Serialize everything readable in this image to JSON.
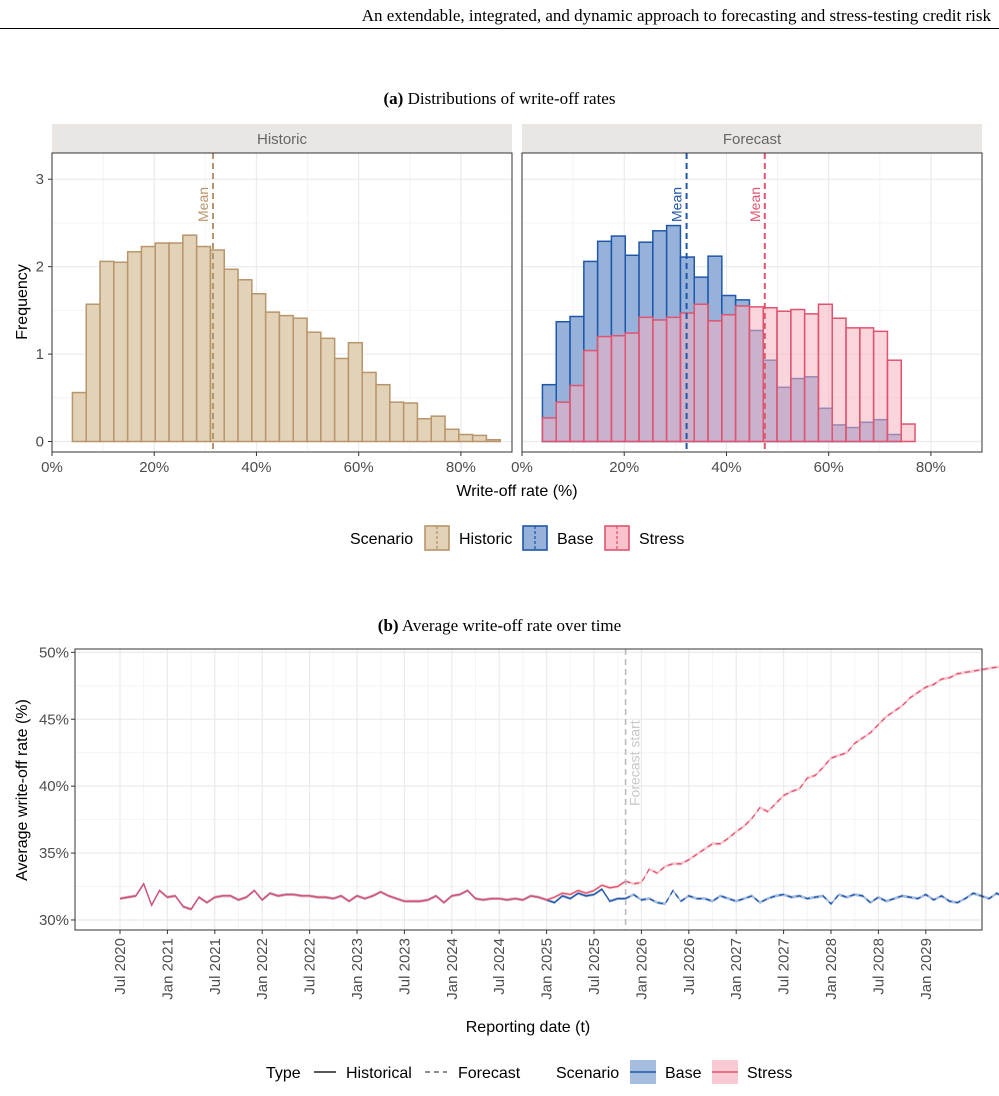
{
  "header": {
    "running_title": "An extendable, integrated, and dynamic approach to forecasting and stress-testing credit risk"
  },
  "panel_a": {
    "label": "(a)",
    "caption": "Distributions of write-off rates"
  },
  "panel_b": {
    "label": "(b)",
    "caption": "Average write-off rate over time"
  },
  "colors": {
    "historic_fill": "#E2D3B8",
    "historic_line": "#B8956A",
    "base_fill": "#96B2DB",
    "base_line": "#1F57A8",
    "stress_fill": "#F8B3BF",
    "stress_line": "#E0546F",
    "overlap_fill": "#A48CB5",
    "grid": "#EBEBEB",
    "strip": "#EAE6E4",
    "forecast_line": "#BBBBBB"
  },
  "chart_data": [
    {
      "type": "bar",
      "subtype": "histogram",
      "title": "Distributions of write-off rates",
      "xlabel": "Write-off rate (%)",
      "ylabel": "Frequency",
      "xlim": [
        0,
        0.9
      ],
      "ylim": [
        -0.12,
        3.3
      ],
      "x_ticks": [
        "0%",
        "20%",
        "40%",
        "60%",
        "80%"
      ],
      "x_tick_values": [
        0,
        0.2,
        0.4,
        0.6,
        0.8
      ],
      "y_ticks": [
        "0",
        "1",
        "2",
        "3"
      ],
      "y_tick_values": [
        0,
        1,
        2,
        3
      ],
      "grid": true,
      "bin_edges_start": 0.04,
      "bin_width": 0.027,
      "facets": [
        {
          "name": "Historic",
          "series": [
            {
              "name": "Historic",
              "values": [
                0.56,
                1.57,
                2.06,
                2.05,
                2.17,
                2.23,
                2.27,
                2.27,
                2.36,
                2.23,
                2.19,
                1.97,
                1.85,
                1.69,
                1.48,
                1.44,
                1.41,
                1.25,
                1.18,
                0.95,
                1.13,
                0.79,
                0.65,
                0.45,
                0.44,
                0.26,
                0.29,
                0.14,
                0.08,
                0.07,
                0.02
              ]
            }
          ],
          "means": [
            {
              "scenario": "Historic",
              "value": 0.315,
              "label": "Mean"
            }
          ]
        },
        {
          "name": "Forecast",
          "series": [
            {
              "name": "Base",
              "values": [
                0.65,
                1.37,
                1.43,
                2.06,
                2.29,
                2.35,
                2.13,
                2.28,
                2.41,
                2.47,
                2.11,
                1.88,
                2.12,
                1.67,
                1.62,
                1.27,
                0.93,
                0.62,
                0.72,
                0.74,
                0.38,
                0.19,
                0.16,
                0.22,
                0.25,
                0.08,
                0
              ]
            },
            {
              "name": "Stress",
              "values": [
                0.27,
                0.45,
                0.64,
                1.04,
                1.2,
                1.21,
                1.24,
                1.42,
                1.39,
                1.42,
                1.47,
                1.57,
                1.38,
                1.45,
                1.55,
                1.54,
                1.53,
                1.49,
                1.51,
                1.46,
                1.57,
                1.41,
                1.3,
                1.3,
                1.26,
                0.93,
                0.2
              ]
            }
          ],
          "means": [
            {
              "scenario": "Base",
              "value": 0.322,
              "label": "Mean"
            },
            {
              "scenario": "Stress",
              "value": 0.475,
              "label": "Mean"
            }
          ]
        }
      ],
      "legend": {
        "title": "Scenario",
        "position": "bottom",
        "items": [
          "Historic",
          "Base",
          "Stress"
        ]
      }
    },
    {
      "type": "line",
      "title": "Average write-off rate over time",
      "xlabel": "Reporting date (t)",
      "ylabel": "Average write-off rate (%)",
      "x_ticks": [
        "Jul 2020",
        "Jan 2021",
        "Jul 2021",
        "Jan 2022",
        "Jul 2022",
        "Jan 2023",
        "Jul 2023",
        "Jan 2024",
        "Jul 2024",
        "Jan 2025",
        "Jul 2025",
        "Jan 2026",
        "Jul 2026",
        "Jan 2027",
        "Jul 2027",
        "Jan 2028",
        "Jul 2028",
        "Jan 2029"
      ],
      "y_ticks": [
        "30%",
        "35%",
        "40%",
        "45%",
        "50%"
      ],
      "y_tick_values": [
        0.3,
        0.35,
        0.4,
        0.45,
        0.5
      ],
      "ylim": [
        0.2925,
        0.5025
      ],
      "grid": true,
      "x_start": "Jul 2020",
      "forecast_start": "Nov 2025",
      "forecast_label": "Forecast start",
      "series": [
        {
          "name": "Base",
          "values": [
            0.316,
            0.317,
            0.318,
            0.327,
            0.311,
            0.322,
            0.317,
            0.318,
            0.31,
            0.308,
            0.317,
            0.313,
            0.317,
            0.318,
            0.318,
            0.315,
            0.317,
            0.322,
            0.315,
            0.32,
            0.318,
            0.319,
            0.319,
            0.318,
            0.318,
            0.317,
            0.317,
            0.316,
            0.318,
            0.314,
            0.318,
            0.316,
            0.318,
            0.321,
            0.318,
            0.316,
            0.314,
            0.314,
            0.314,
            0.315,
            0.318,
            0.313,
            0.318,
            0.319,
            0.322,
            0.316,
            0.315,
            0.316,
            0.316,
            0.315,
            0.316,
            0.315,
            0.318,
            0.317,
            0.315,
            0.313,
            0.318,
            0.316,
            0.32,
            0.318,
            0.319,
            0.323,
            0.314,
            0.316,
            0.316,
            0.319,
            0.315,
            0.316,
            0.313,
            0.312,
            0.322,
            0.314,
            0.318,
            0.316,
            0.316,
            0.314,
            0.318,
            0.316,
            0.314,
            0.316,
            0.318,
            0.313,
            0.316,
            0.318,
            0.319,
            0.317,
            0.318,
            0.316,
            0.317,
            0.318,
            0.312,
            0.319,
            0.317,
            0.319,
            0.318,
            0.313,
            0.317,
            0.314,
            0.316,
            0.318,
            0.317,
            0.316,
            0.319,
            0.315,
            0.318,
            0.314,
            0.313,
            0.316,
            0.32,
            0.318,
            0.316,
            0.32,
            0.316,
            0.323,
            0.318,
            0.316,
            0.318,
            0.315,
            0.314,
            0.317,
            0.314,
            0.311,
            0.316,
            0.318,
            0.314,
            0.318
          ]
        },
        {
          "name": "Stress",
          "values": [
            0.316,
            0.317,
            0.318,
            0.327,
            0.311,
            0.322,
            0.317,
            0.318,
            0.31,
            0.308,
            0.317,
            0.313,
            0.317,
            0.318,
            0.318,
            0.315,
            0.317,
            0.322,
            0.315,
            0.32,
            0.318,
            0.319,
            0.319,
            0.318,
            0.318,
            0.317,
            0.317,
            0.316,
            0.318,
            0.314,
            0.318,
            0.316,
            0.318,
            0.321,
            0.318,
            0.316,
            0.314,
            0.314,
            0.314,
            0.315,
            0.318,
            0.313,
            0.318,
            0.319,
            0.322,
            0.316,
            0.315,
            0.316,
            0.316,
            0.315,
            0.316,
            0.315,
            0.318,
            0.317,
            0.315,
            0.317,
            0.32,
            0.319,
            0.322,
            0.32,
            0.322,
            0.326,
            0.324,
            0.325,
            0.329,
            0.327,
            0.328,
            0.338,
            0.335,
            0.34,
            0.342,
            0.342,
            0.345,
            0.349,
            0.353,
            0.357,
            0.357,
            0.361,
            0.366,
            0.37,
            0.376,
            0.384,
            0.381,
            0.387,
            0.393,
            0.396,
            0.398,
            0.406,
            0.408,
            0.414,
            0.421,
            0.423,
            0.425,
            0.432,
            0.436,
            0.44,
            0.446,
            0.452,
            0.456,
            0.46,
            0.466,
            0.47,
            0.474,
            0.476,
            0.48,
            0.481,
            0.484,
            0.485,
            0.486,
            0.487,
            0.488,
            0.489,
            0.489,
            0.491,
            0.492,
            0.494,
            0.495,
            0.495,
            0.496,
            0.496,
            0.496,
            0.496,
            0.495,
            0.496,
            0.497,
            0.497
          ]
        }
      ],
      "legends": [
        {
          "title": "Type",
          "items": [
            "Historical",
            "Forecast"
          ],
          "position": "bottom"
        },
        {
          "title": "Scenario",
          "items": [
            "Base",
            "Stress"
          ],
          "position": "bottom"
        }
      ]
    }
  ]
}
